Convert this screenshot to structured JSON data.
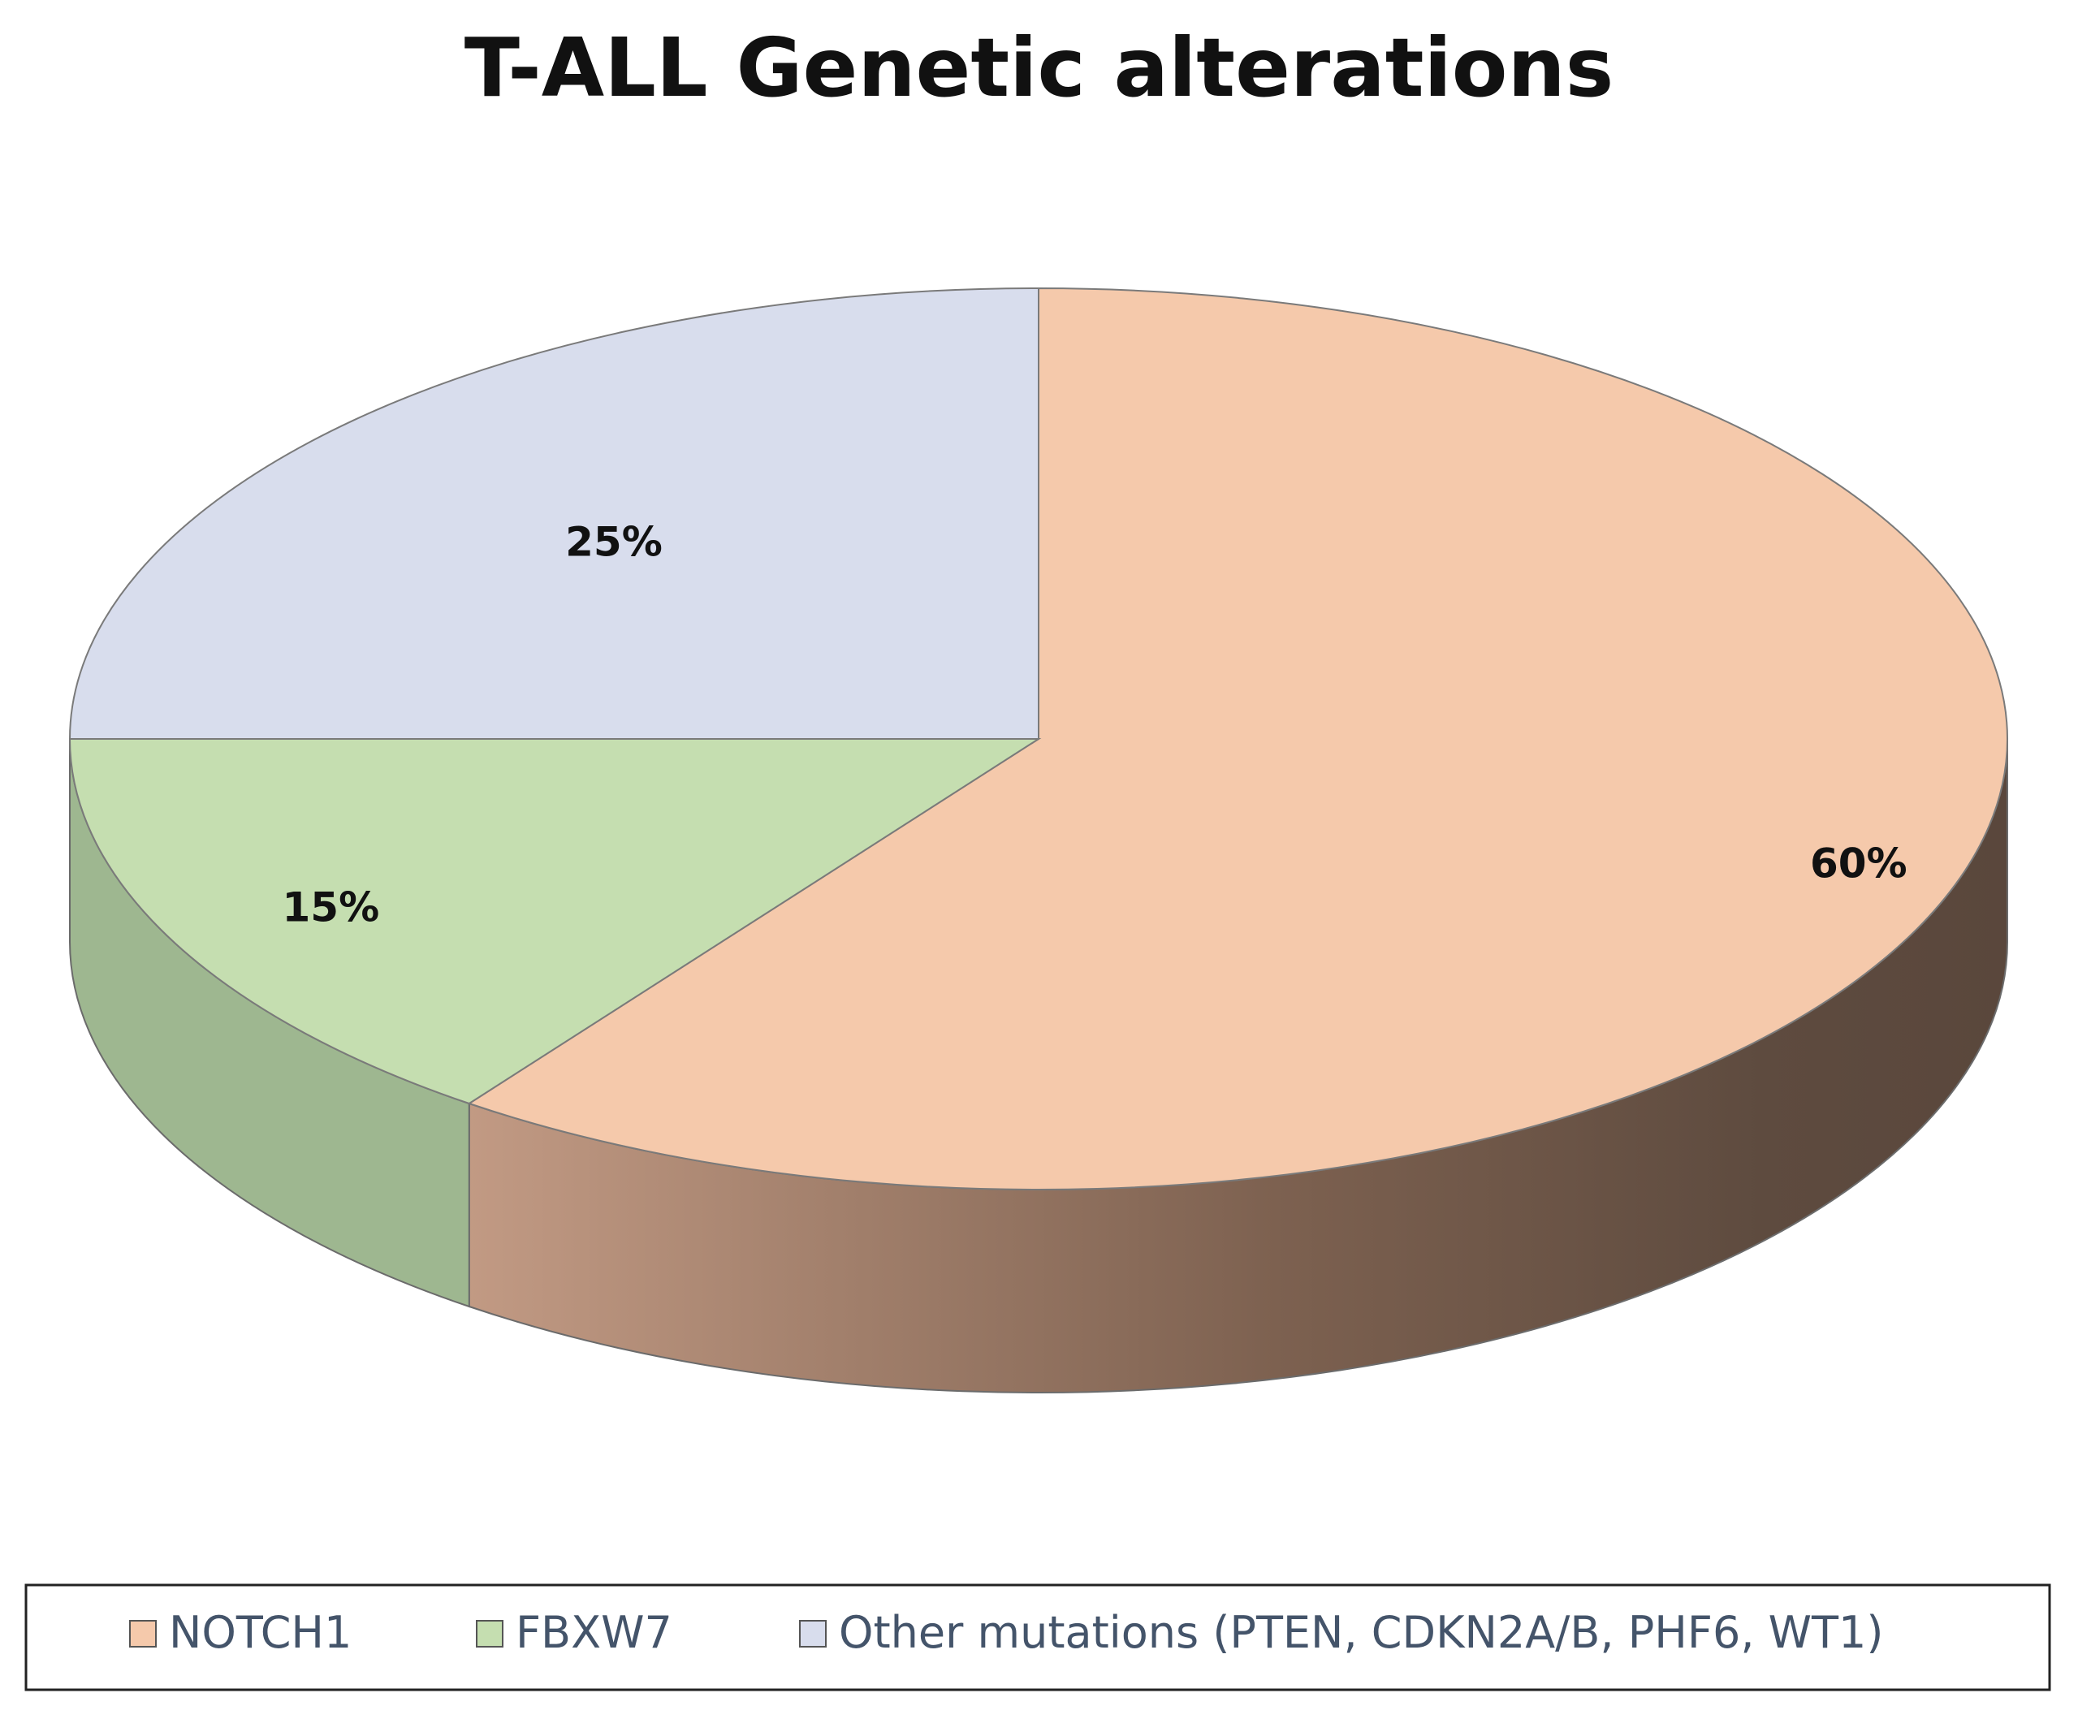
{
  "chart_data": {
    "type": "pie",
    "title": "T-ALL Genetic alterations",
    "categories": [
      "NOTCH1",
      "FBXW7",
      "Other mutations (PTEN, CDKN2A/B, PHF6, WT1)"
    ],
    "values": [
      60,
      15,
      25
    ],
    "data_labels": [
      "60%",
      "15%",
      "25%"
    ],
    "colors": [
      "#f5c9ab",
      "#c5deb0",
      "#d8dded"
    ],
    "side_colors": [
      "#b8917a",
      "#9eb790",
      "#b0b5c4"
    ],
    "side_dark": "#5e4b3f",
    "legend_position": "bottom",
    "style": "3d"
  }
}
